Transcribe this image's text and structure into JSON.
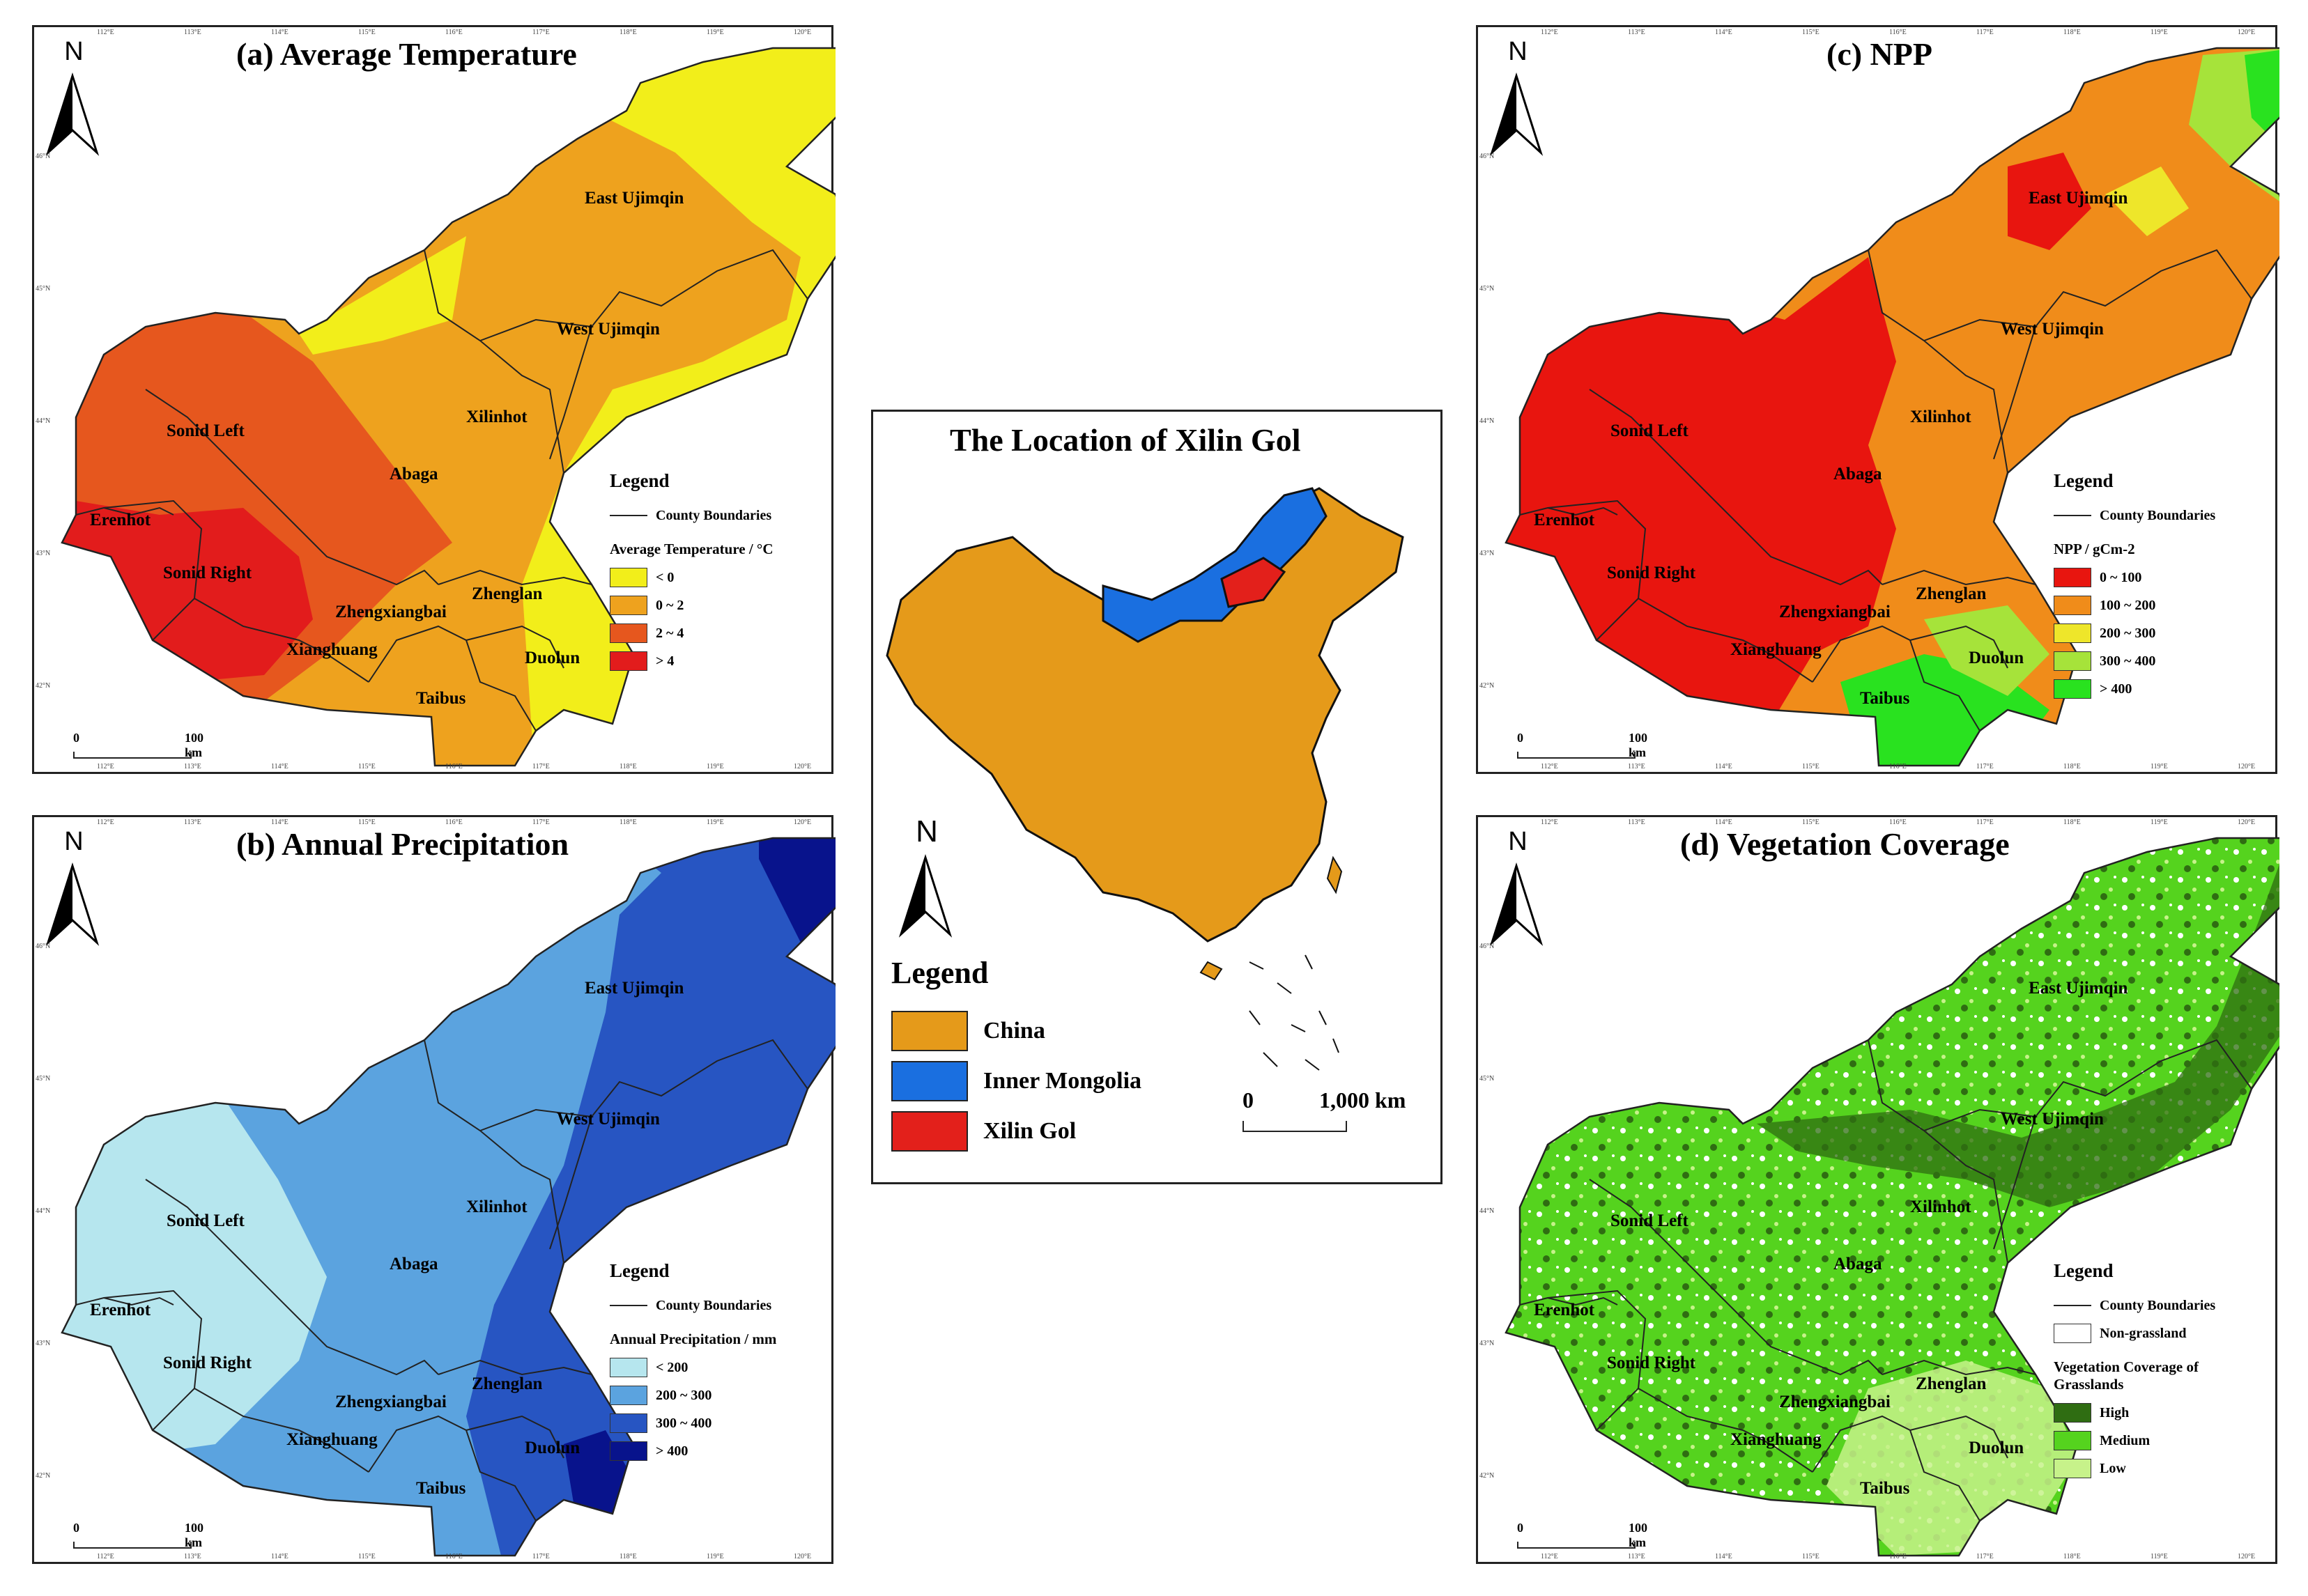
{
  "center": {
    "title": "The Location of Xilin Gol",
    "legend_title": "Legend",
    "legend": [
      {
        "label": "China",
        "color": "#e59a1a"
      },
      {
        "label": "Inner Mongolia",
        "color": "#1a6fe0"
      },
      {
        "label": "Xilin Gol",
        "color": "#e3201b"
      }
    ],
    "north": "N",
    "scale_start": "0",
    "scale_end": "1,000 km"
  },
  "common": {
    "north": "N",
    "legend_title": "Legend",
    "boundary_label": "County Boundaries",
    "scale_start": "0",
    "scale_end": "100 km",
    "counties": {
      "east_ujimqin": "East Ujimqin",
      "west_ujimqin": "West Ujimqin",
      "xilinhot": "Xilinhot",
      "sonid_left": "Sonid Left",
      "abaga": "Abaga",
      "erenhot": "Erenhot",
      "sonid_right": "Sonid Right",
      "zhengxiangbai": "Zhengxiangbai",
      "zhenglan": "Zhenglan",
      "xianghuang": "Xianghuang",
      "duolun": "Duolun",
      "taibus": "Taibus"
    },
    "lon_ticks": [
      "112°E",
      "113°E",
      "114°E",
      "115°E",
      "116°E",
      "117°E",
      "118°E",
      "119°E",
      "120°E"
    ],
    "lat_ticks": [
      "46°N",
      "45°N",
      "44°N",
      "43°N",
      "42°N"
    ]
  },
  "panels": {
    "a": {
      "title": "(a) Average Temperature",
      "legend_sub": "Average Temperature / °C",
      "classes": [
        {
          "label": "< 0",
          "color": "#f2ee1a"
        },
        {
          "label": "0 ~ 2",
          "color": "#eea21e"
        },
        {
          "label": "2 ~ 4",
          "color": "#e6571e"
        },
        {
          "label": "> 4",
          "color": "#e21c1c"
        }
      ]
    },
    "b": {
      "title": "(b) Annual Precipitation",
      "legend_sub": "Annual Precipitation / mm",
      "classes": [
        {
          "label": "< 200",
          "color": "#b6e6ee"
        },
        {
          "label": "200 ~ 300",
          "color": "#5ba3df"
        },
        {
          "label": "300 ~ 400",
          "color": "#2755c2"
        },
        {
          "label": "> 400",
          "color": "#08138c"
        }
      ]
    },
    "c": {
      "title": "(c) NPP",
      "legend_sub": "NPP / gCm-2",
      "classes": [
        {
          "label": "0 ~ 100",
          "color": "#e8150f"
        },
        {
          "label": "100 ~ 200",
          "color": "#f08c1a"
        },
        {
          "label": "200 ~ 300",
          "color": "#eee62a"
        },
        {
          "label": "300 ~ 400",
          "color": "#a6e33a"
        },
        {
          "label": "> 400",
          "color": "#29e21f"
        }
      ]
    },
    "d": {
      "title": "(d) Vegetation Coverage",
      "nongrass_label": "Non-grassland",
      "legend_sub": "Vegetation Coverage of Grasslands",
      "classes": [
        {
          "label": "High",
          "color": "#2f6d12"
        },
        {
          "label": "Medium",
          "color": "#55d31e"
        },
        {
          "label": "Low",
          "color": "#c7f28a"
        }
      ]
    }
  }
}
